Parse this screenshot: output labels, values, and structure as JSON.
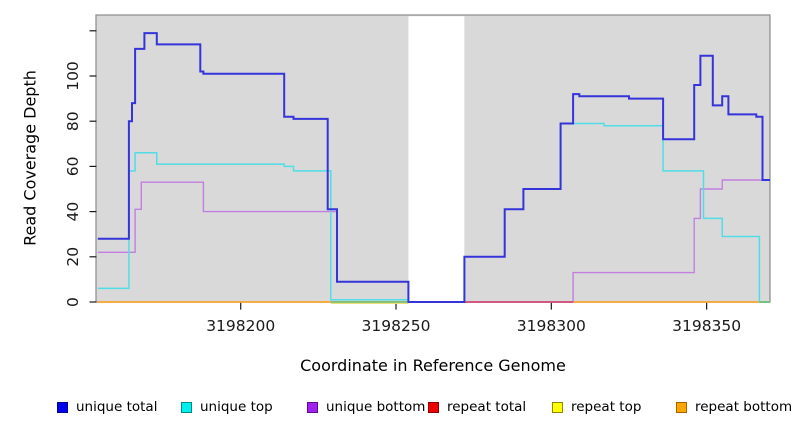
{
  "figure": {
    "xlabel": "Coordinate in Reference Genome",
    "ylabel": "Read Coverage Depth"
  },
  "chart_data": {
    "type": "line",
    "subtype": "step-coverage-plot",
    "title": "",
    "xlabel": "Coordinate in Reference Genome",
    "ylabel": "Read Coverage Depth",
    "xlim": [
      3198153.7,
      3198370.4
    ],
    "ylim": [
      0,
      126.9
    ],
    "x_ticks": [
      3198200,
      3198250,
      3198300,
      3198350
    ],
    "y_ticks": [
      0,
      20,
      40,
      60,
      80,
      100
    ],
    "y_ticks_unlabeled": [
      120
    ],
    "grid": false,
    "legend_position": "bottom",
    "panel_bg": "#d9d9d9",
    "panel_border": "#8c8c8c",
    "tick_color": "#1a1a1a",
    "gap_region": {
      "from": 3198254,
      "to": 3198272,
      "fill": "#ffffff"
    },
    "series": [
      {
        "name": "unique total",
        "line_color": "#3434da",
        "legend_fill": "#0000ee",
        "legend_border": "#000090",
        "width": 2,
        "points": [
          [
            3198154,
            28
          ],
          [
            3198164,
            80
          ],
          [
            3198165,
            88
          ],
          [
            3198166,
            112
          ],
          [
            3198169,
            119
          ],
          [
            3198173,
            114
          ],
          [
            3198187,
            102
          ],
          [
            3198188,
            101
          ],
          [
            3198214,
            82
          ],
          [
            3198217,
            81
          ],
          [
            3198228,
            41
          ],
          [
            3198231,
            9
          ],
          [
            3198254,
            0
          ],
          [
            3198272,
            20
          ],
          [
            3198285,
            41
          ],
          [
            3198291,
            50
          ],
          [
            3198303,
            79
          ],
          [
            3198307,
            92
          ],
          [
            3198309,
            91
          ],
          [
            3198325,
            90
          ],
          [
            3198336,
            72
          ],
          [
            3198346,
            96
          ],
          [
            3198348,
            109
          ],
          [
            3198352,
            87
          ],
          [
            3198355,
            91
          ],
          [
            3198357,
            83
          ],
          [
            3198366,
            82
          ],
          [
            3198368,
            54
          ],
          [
            3198370.4,
            54
          ]
        ]
      },
      {
        "name": "unique top",
        "line_color": "#52dde6",
        "legend_fill": "#00eeee",
        "legend_border": "#008b8b",
        "width": 1.5,
        "points": [
          [
            3198154,
            6
          ],
          [
            3198164,
            58
          ],
          [
            3198166,
            66
          ],
          [
            3198173,
            61
          ],
          [
            3198214,
            60
          ],
          [
            3198217,
            58
          ],
          [
            3198229,
            1
          ],
          [
            3198254,
            0
          ],
          [
            3198272,
            20
          ],
          [
            3198285,
            41
          ],
          [
            3198291,
            50
          ],
          [
            3198303,
            79
          ],
          [
            3198317,
            78
          ],
          [
            3198336,
            58
          ],
          [
            3198349,
            37
          ],
          [
            3198355,
            29
          ],
          [
            3198367,
            0
          ],
          [
            3198370.4,
            0
          ]
        ]
      },
      {
        "name": "unique bottom",
        "line_color": "#c27fe0",
        "legend_fill": "#a020f0",
        "legend_border": "#5d0a8f",
        "width": 1.4,
        "points": [
          [
            3198154,
            22
          ],
          [
            3198166,
            41
          ],
          [
            3198168,
            53
          ],
          [
            3198188,
            40
          ],
          [
            3198231,
            9
          ],
          [
            3198254,
            0
          ],
          [
            3198307,
            13
          ],
          [
            3198346,
            37
          ],
          [
            3198348,
            50
          ],
          [
            3198355,
            54
          ],
          [
            3198370.4,
            54
          ]
        ]
      },
      {
        "name": "repeat total",
        "line_color": "#cf4575",
        "legend_fill": "#ee0000",
        "legend_border": "#8b0000",
        "width": 1.2,
        "points": [
          [
            3198154,
            0
          ],
          [
            3198370.4,
            0
          ]
        ]
      },
      {
        "name": "repeat top",
        "line_color": "#e8df7a",
        "legend_fill": "#ffff00",
        "legend_border": "#8b8b00",
        "width": 1.2,
        "points": [
          [
            3198154,
            0
          ],
          [
            3198370.4,
            0
          ]
        ]
      },
      {
        "name": "repeat bottom",
        "line_color": "#ffa521",
        "legend_fill": "#ffa500",
        "legend_border": "#a66400",
        "width": 1.6,
        "points": [
          [
            3198154,
            0
          ],
          [
            3198370.4,
            0
          ]
        ]
      }
    ],
    "baseline_overlap_segments": [
      {
        "from": 3198229,
        "to": 3198254,
        "color": "#e8df7a",
        "dy": 1.2
      },
      {
        "from": 3198229,
        "to": 3198254,
        "color": "#6dbd7a",
        "dy": 0
      },
      {
        "from": 3198272,
        "to": 3198307,
        "color": "#cf4575",
        "dy": 0
      },
      {
        "from": 3198367,
        "to": 3198370.4,
        "color": "#6dbd7a",
        "dy": 0
      }
    ]
  }
}
